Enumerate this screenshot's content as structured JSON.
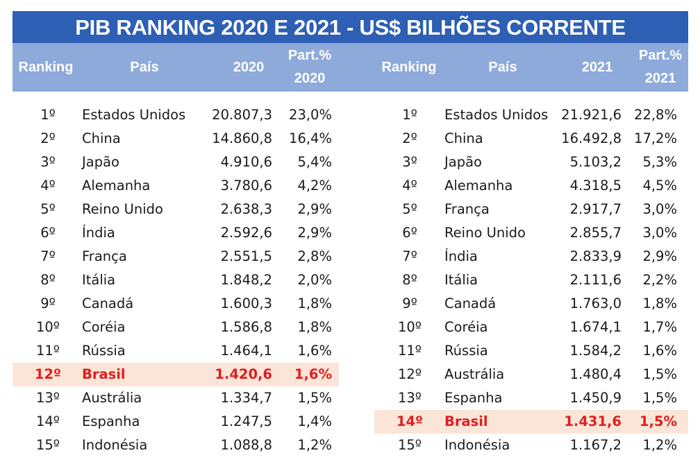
{
  "title": "PIB RANKING 2020 E 2021  -  US$ BILHÕES CORRENTE",
  "headers": {
    "left": {
      "ranking": "Ranking",
      "pais": "País",
      "year": "2020",
      "part_line1": "Part.%",
      "part_line2": "2020"
    },
    "right": {
      "ranking": "Ranking",
      "pais": "País",
      "year": "2021",
      "part_line1": "Part.%",
      "part_line2": "2021"
    }
  },
  "table_2020": [
    {
      "rank": "1º",
      "country": "Estados Unidos",
      "value": "20.807,3",
      "share": "23,0%",
      "highlight": false
    },
    {
      "rank": "2º",
      "country": "China",
      "value": "14.860,8",
      "share": "16,4%",
      "highlight": false
    },
    {
      "rank": "3º",
      "country": "Japão",
      "value": "4.910,6",
      "share": "5,4%",
      "highlight": false
    },
    {
      "rank": "4º",
      "country": "Alemanha",
      "value": "3.780,6",
      "share": "4,2%",
      "highlight": false
    },
    {
      "rank": "5º",
      "country": "Reino Unido",
      "value": "2.638,3",
      "share": "2,9%",
      "highlight": false
    },
    {
      "rank": "6º",
      "country": "Índia",
      "value": "2.592,6",
      "share": "2,9%",
      "highlight": false
    },
    {
      "rank": "7º",
      "country": "França",
      "value": "2.551,5",
      "share": "2,8%",
      "highlight": false
    },
    {
      "rank": "8º",
      "country": "Itália",
      "value": "1.848,2",
      "share": "2,0%",
      "highlight": false
    },
    {
      "rank": "9º",
      "country": "Canadá",
      "value": "1.600,3",
      "share": "1,8%",
      "highlight": false
    },
    {
      "rank": "10º",
      "country": "Coréia",
      "value": "1.586,8",
      "share": "1,8%",
      "highlight": false
    },
    {
      "rank": "11º",
      "country": "Rússia",
      "value": "1.464,1",
      "share": "1,6%",
      "highlight": false
    },
    {
      "rank": "12º",
      "country": "Brasil",
      "value": "1.420,6",
      "share": "1,6%",
      "highlight": true
    },
    {
      "rank": "13º",
      "country": "Austrália",
      "value": "1.334,7",
      "share": "1,5%",
      "highlight": false
    },
    {
      "rank": "14º",
      "country": "Espanha",
      "value": "1.247,5",
      "share": "1,4%",
      "highlight": false
    },
    {
      "rank": "15º",
      "country": "Indonésia",
      "value": "1.088,8",
      "share": "1,2%",
      "highlight": false
    }
  ],
  "table_2021": [
    {
      "rank": "1º",
      "country": "Estados Unidos",
      "value": "21.921,6",
      "share": "22,8%",
      "highlight": false
    },
    {
      "rank": "2º",
      "country": "China",
      "value": "16.492,8",
      "share": "17,2%",
      "highlight": false
    },
    {
      "rank": "3º",
      "country": "Japão",
      "value": "5.103,2",
      "share": "5,3%",
      "highlight": false
    },
    {
      "rank": "4º",
      "country": "Alemanha",
      "value": "4.318,5",
      "share": "4,5%",
      "highlight": false
    },
    {
      "rank": "5º",
      "country": "França",
      "value": "2.917,7",
      "share": "3,0%",
      "highlight": false
    },
    {
      "rank": "6º",
      "country": "Reino Unido",
      "value": "2.855,7",
      "share": "3,0%",
      "highlight": false
    },
    {
      "rank": "7º",
      "country": "Índia",
      "value": "2.833,9",
      "share": "2,9%",
      "highlight": false
    },
    {
      "rank": "8º",
      "country": "Itália",
      "value": "2.111,6",
      "share": "2,2%",
      "highlight": false
    },
    {
      "rank": "9º",
      "country": "Canadá",
      "value": "1.763,0",
      "share": "1,8%",
      "highlight": false
    },
    {
      "rank": "10º",
      "country": "Coréia",
      "value": "1.674,1",
      "share": "1,7%",
      "highlight": false
    },
    {
      "rank": "11º",
      "country": "Rússia",
      "value": "1.584,2",
      "share": "1,6%",
      "highlight": false
    },
    {
      "rank": "12º",
      "country": "Austrália",
      "value": "1.480,4",
      "share": "1,5%",
      "highlight": false
    },
    {
      "rank": "13º",
      "country": "Espanha",
      "value": "1.450,9",
      "share": "1,5%",
      "highlight": false
    },
    {
      "rank": "14º",
      "country": "Brasil",
      "value": "1.431,6",
      "share": "1,5%",
      "highlight": true
    },
    {
      "rank": "15º",
      "country": "Indonésia",
      "value": "1.167,2",
      "share": "1,2%",
      "highlight": false
    }
  ],
  "colors": {
    "title_bg": "#2d5fb4",
    "header_bg": "#8eaadb",
    "highlight_bg": "#fbe4d8",
    "highlight_text": "#e01e1e"
  }
}
